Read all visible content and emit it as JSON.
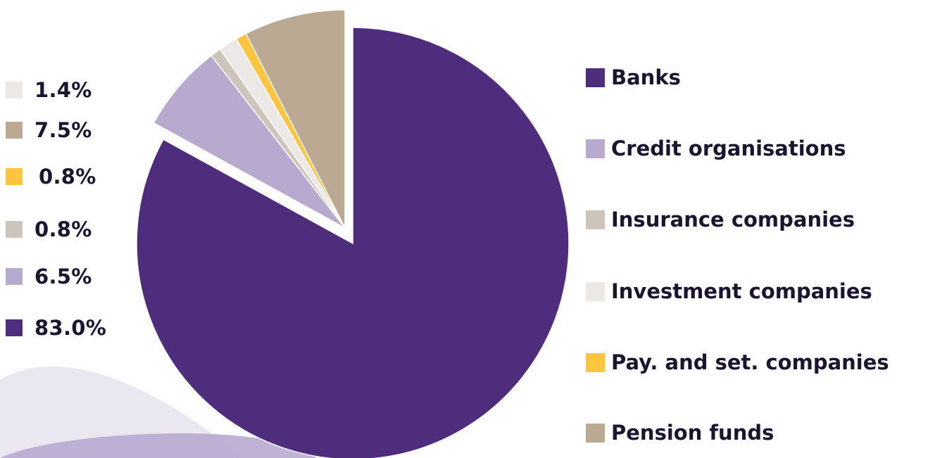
{
  "chart_data": {
    "type": "pie",
    "title": "",
    "start": "12 o'clock, clockwise",
    "exploded_slice": "Banks",
    "colors": {
      "background_decor": "#e6e1ee",
      "background_decor_dark": "#b7a8ce"
    },
    "slices": [
      {
        "label": "Banks",
        "value": 83.0,
        "value_label": "83.0%",
        "color": "#4e2d7c"
      },
      {
        "label": "Credit organisations",
        "value": 6.5,
        "value_label": "6.5%",
        "color": "#b8a9cf"
      },
      {
        "label": "Insurance companies",
        "value": 0.8,
        "value_label": "0.8%",
        "color": "#cdc4bc"
      },
      {
        "label": "Investment companies",
        "value": 1.4,
        "value_label": "1.4%",
        "color": "#ebe8e6"
      },
      {
        "label": "Pay. and set. companies",
        "value": 0.8,
        "value_label": "0.8%",
        "color": "#fcc43f"
      },
      {
        "label": "Pension funds",
        "value": 7.5,
        "value_label": "7.5%",
        "color": "#bba994"
      }
    ],
    "value_list_order": [
      "Investment companies",
      "Pension funds",
      "Pay. and set. companies",
      "Insurance companies",
      "Credit organisations",
      "Banks"
    ],
    "legend_order": [
      "Banks",
      "Credit organisations",
      "Insurance companies",
      "Investment companies",
      "Pay. and set. companies",
      "Pension funds"
    ],
    "legend_position": "right",
    "value_list_position": "left"
  }
}
